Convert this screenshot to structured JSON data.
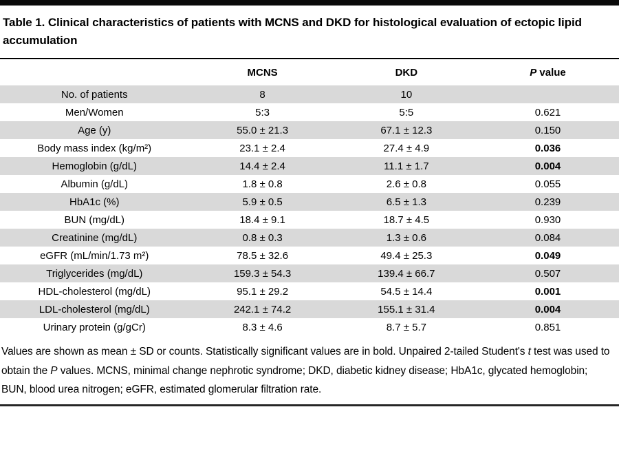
{
  "title": "Table 1. Clinical characteristics of patients with MCNS and DKD for histological evaluation of ectopic lipid accumulation",
  "table": {
    "header": {
      "label_col": "",
      "mcns": "MCNS",
      "dkd": "DKD",
      "p_italic": "P",
      "p_rest": " value"
    },
    "rows": [
      {
        "label": "No. of patients",
        "mcns": "8",
        "dkd": "10",
        "p": "",
        "significant": false
      },
      {
        "label": "Men/Women",
        "mcns": "5:3",
        "dkd": "5:5",
        "p": "0.621",
        "significant": false
      },
      {
        "label": "Age (y)",
        "mcns": "55.0 ± 21.3",
        "dkd": "67.1 ± 12.3",
        "p": "0.150",
        "significant": false
      },
      {
        "label": "Body mass index (kg/m²)",
        "mcns": "23.1 ± 2.4",
        "dkd": "27.4 ± 4.9",
        "p": "0.036",
        "significant": true
      },
      {
        "label": "Hemoglobin (g/dL)",
        "mcns": "14.4 ± 2.4",
        "dkd": "11.1 ± 1.7",
        "p": "0.004",
        "significant": true
      },
      {
        "label": "Albumin (g/dL)",
        "mcns": "1.8 ± 0.8",
        "dkd": "2.6 ± 0.8",
        "p": "0.055",
        "significant": false
      },
      {
        "label": "HbA1c (%)",
        "mcns": "5.9 ± 0.5",
        "dkd": "6.5 ± 1.3",
        "p": "0.239",
        "significant": false
      },
      {
        "label": "BUN (mg/dL)",
        "mcns": "18.4 ± 9.1",
        "dkd": "18.7 ± 4.5",
        "p": "0.930",
        "significant": false
      },
      {
        "label": "Creatinine (mg/dL)",
        "mcns": "0.8 ± 0.3",
        "dkd": "1.3 ± 0.6",
        "p": "0.084",
        "significant": false
      },
      {
        "label": "eGFR (mL/min/1.73 m²)",
        "mcns": "78.5 ± 32.6",
        "dkd": "49.4 ± 25.3",
        "p": "0.049",
        "significant": true
      },
      {
        "label": "Triglycerides (mg/dL)",
        "mcns": "159.3 ± 54.3",
        "dkd": "139.4 ± 66.7",
        "p": "0.507",
        "significant": false
      },
      {
        "label": "HDL-cholesterol (mg/dL)",
        "mcns": "95.1 ± 29.2",
        "dkd": "54.5 ± 14.4",
        "p": "0.001",
        "significant": true
      },
      {
        "label": "LDL-cholesterol (mg/dL)",
        "mcns": "242.1 ± 74.2",
        "dkd": "155.1 ± 31.4",
        "p": "0.004",
        "significant": true
      },
      {
        "label": "Urinary protein (g/gCr)",
        "mcns": "8.3 ± 4.6",
        "dkd": "8.7 ± 5.7",
        "p": "0.851",
        "significant": false
      }
    ],
    "stripe_color": "#d9d9d9"
  },
  "footnote": {
    "part1": "Values are shown as mean ± SD or counts. Statistically significant values are in bold. Unpaired 2-tailed Student's ",
    "italic1": "t",
    "part2": " test was used to obtain the ",
    "italic2": "P",
    "part3": " values. MCNS, minimal change nephrotic syndrome; DKD, diabetic kidney disease; HbA1c, glycated hemoglobin; BUN, blood urea nitrogen; eGFR, estimated glomerular filtration rate."
  }
}
